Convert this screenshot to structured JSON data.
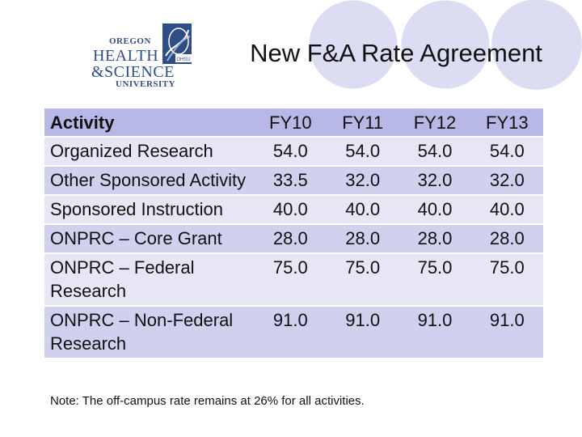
{
  "slide": {
    "title": "New F&A Rate Agreement",
    "note": "Note: The off-campus rate remains at 26% for all activities."
  },
  "logo": {
    "line1": "OREGON",
    "line2": "HEALTH",
    "line3": "&SCIENCE",
    "line4": "UNIVERSITY",
    "badge": "OHSU"
  },
  "table": {
    "headers": [
      "Activity",
      "FY10",
      "FY11",
      "FY12",
      "FY13"
    ],
    "rows": [
      {
        "activity": "Organized Research",
        "values": [
          "54.0",
          "54.0",
          "54.0",
          "54.0"
        ]
      },
      {
        "activity": "Other Sponsored Activity",
        "values": [
          "33.5",
          "32.0",
          "32.0",
          "32.0"
        ]
      },
      {
        "activity": "Sponsored Instruction",
        "values": [
          "40.0",
          "40.0",
          "40.0",
          "40.0"
        ]
      },
      {
        "activity": "ONPRC – Core Grant",
        "values": [
          "28.0",
          "28.0",
          "28.0",
          "28.0"
        ]
      },
      {
        "activity": "ONPRC – Federal Research",
        "values": [
          "75.0",
          "75.0",
          "75.0",
          "75.0"
        ]
      },
      {
        "activity": "ONPRC – Non-Federal Research",
        "values": [
          "91.0",
          "91.0",
          "91.0",
          "91.0"
        ]
      }
    ]
  },
  "colors": {
    "header_band": "#b8b8e6",
    "row_light": "#e6e6f5",
    "row_medium": "#d0d0ef",
    "decor_circle": "#d9d9f2",
    "logo_blue": "#2f4e87"
  }
}
